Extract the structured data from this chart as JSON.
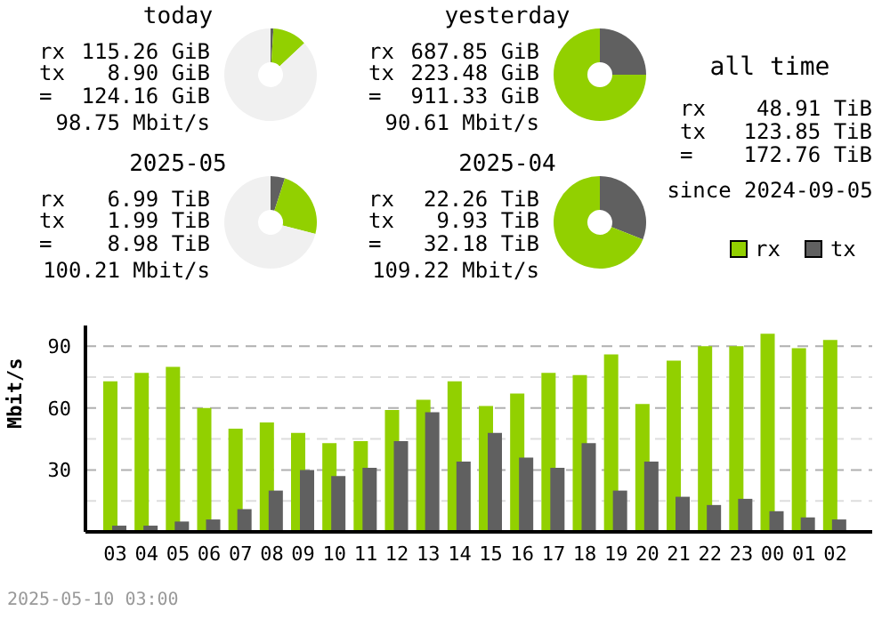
{
  "chart_data": [
    {
      "type": "donut",
      "title": "today",
      "categories": [
        null,
        null,
        null
      ],
      "values": [
        1,
        12,
        87
      ],
      "colors": [
        "#606060",
        "#92d000",
        "#f0f0f0"
      ],
      "annotations": [
        "rx 115.26 GiB",
        "tx 8.90 GiB",
        "= 124.16 GiB",
        "98.75 Mbit/s"
      ]
    },
    {
      "type": "donut",
      "title": "yesterday",
      "categories": [
        null,
        null
      ],
      "values": [
        25,
        75
      ],
      "colors": [
        "#606060",
        "#92d000"
      ],
      "annotations": [
        "rx 687.85 GiB",
        "tx 223.48 GiB",
        "= 911.33 GiB",
        "90.61 Mbit/s"
      ]
    },
    {
      "type": "donut",
      "title": "2025-05",
      "categories": [
        null,
        null,
        null
      ],
      "values": [
        5,
        24,
        71
      ],
      "colors": [
        "#606060",
        "#92d000",
        "#f0f0f0"
      ],
      "annotations": [
        "rx 6.99 TiB",
        "tx 1.99 TiB",
        "= 8.98 TiB",
        "100.21 Mbit/s"
      ]
    },
    {
      "type": "donut",
      "title": "2025-04",
      "categories": [
        null,
        null
      ],
      "values": [
        31,
        69
      ],
      "colors": [
        "#606060",
        "#92d000"
      ],
      "annotations": [
        "rx 22.26 TiB",
        "tx 9.93 TiB",
        "= 32.18 TiB",
        "109.22 Mbit/s"
      ]
    },
    {
      "type": "other",
      "title": "all time",
      "annotations": [
        "rx 48.91 TiB",
        "tx 123.85 TiB",
        "= 172.76 TiB",
        "since 2024-09-05"
      ]
    },
    {
      "type": "bar",
      "ylabel": "Mbit/s",
      "categories": [
        "03",
        "04",
        "05",
        "06",
        "07",
        "08",
        "09",
        "10",
        "11",
        "12",
        "13",
        "14",
        "15",
        "16",
        "17",
        "18",
        "19",
        "20",
        "21",
        "22",
        "23",
        "00",
        "01",
        "02"
      ],
      "series": [
        {
          "name": "rx",
          "color": "#92d000",
          "values": [
            73,
            77,
            80,
            60,
            50,
            53,
            48,
            43,
            44,
            59,
            64,
            73,
            61,
            67,
            77,
            76,
            86,
            62,
            83,
            90,
            90,
            96,
            89,
            93
          ]
        },
        {
          "name": "tx",
          "color": "#606060",
          "values": [
            3,
            3,
            5,
            6,
            11,
            20,
            30,
            27,
            31,
            44,
            58,
            34,
            48,
            36,
            31,
            43,
            20,
            34,
            17,
            13,
            16,
            10,
            7,
            6
          ]
        }
      ],
      "ylim": [
        0,
        100
      ],
      "yticks": [
        {
          "value": 15,
          "label": null
        },
        30,
        {
          "value": 45,
          "label": null
        },
        60,
        {
          "value": 75,
          "label": null
        },
        90
      ],
      "grid": "y",
      "legend": "top right",
      "annotations": [
        "2025-05-10 03:00"
      ]
    }
  ]
}
